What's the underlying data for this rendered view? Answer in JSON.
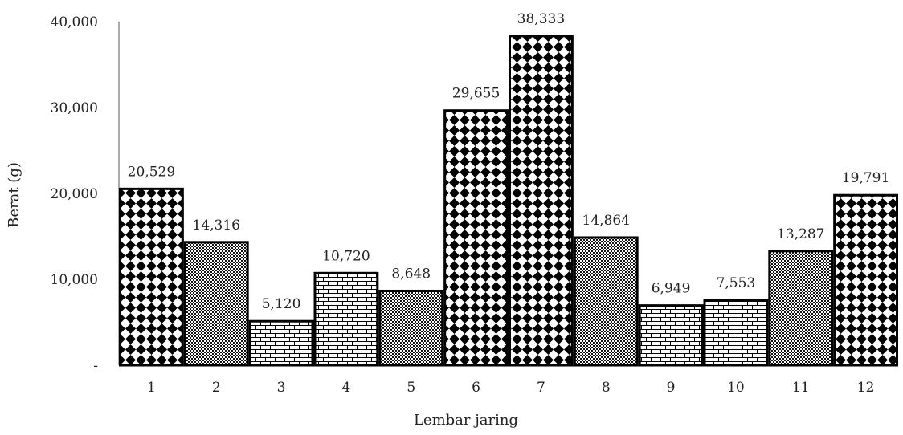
{
  "chart_data": {
    "type": "bar",
    "title": "",
    "xlabel": "Lembar jaring",
    "ylabel": "Berat (g)",
    "ylim": [
      0,
      40
    ],
    "yticks": [
      0,
      10,
      20,
      30,
      40
    ],
    "ytick_labels": [
      "-",
      "10,000",
      "20,000",
      "30,000",
      "40,000"
    ],
    "grid": false,
    "legend": "none",
    "categories": [
      "1",
      "2",
      "3",
      "4",
      "5",
      "6",
      "7",
      "8",
      "9",
      "10",
      "11",
      "12"
    ],
    "values": [
      20.529,
      14.316,
      5.12,
      10.72,
      8.648,
      29.655,
      38.333,
      14.864,
      6.949,
      7.553,
      13.287,
      19.791
    ],
    "value_labels": [
      "20,529",
      "14,316",
      "5,120",
      "10,720",
      "8,648",
      "29,655",
      "38,333",
      "14,864",
      "6,949",
      "7,553",
      "13,287",
      "19,791"
    ],
    "patterns": [
      "diamond",
      "checker",
      "brick",
      "brick",
      "checker",
      "diamond",
      "diamond",
      "checker",
      "brick",
      "brick",
      "checker",
      "diamond"
    ],
    "colors": {
      "bar_outline": "#000000",
      "axis": "#555555",
      "text": "#222222"
    }
  }
}
